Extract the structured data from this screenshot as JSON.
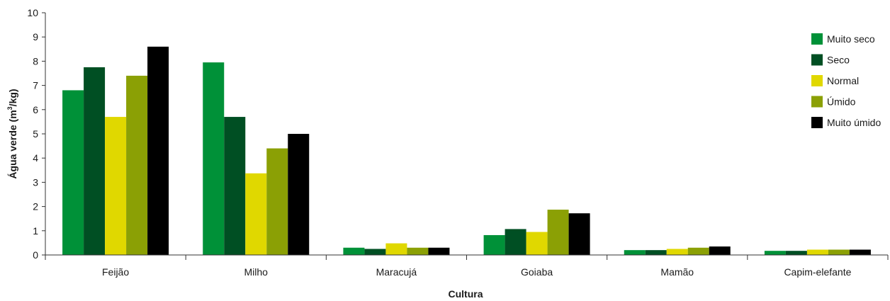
{
  "chart_data": {
    "type": "bar",
    "title": "",
    "xlabel": "Cultura",
    "ylabel_main": "Água verde (m",
    "ylabel_sup": "3",
    "ylabel_end": "/kg)",
    "ylim": [
      0,
      10
    ],
    "yticks": [
      "0",
      "1",
      "2",
      "3",
      "4",
      "5",
      "6",
      "7",
      "8",
      "9",
      "10"
    ],
    "grid": false,
    "legend_position": "right",
    "categories": [
      "Feijão",
      "Milho",
      "Maracujá",
      "Goiaba",
      "Mamão",
      "Capim-elefante"
    ],
    "series": [
      {
        "name": "Muito seco",
        "color": "#009138",
        "values": [
          6.8,
          7.95,
          0.3,
          0.82,
          0.2,
          0.17
        ]
      },
      {
        "name": "Seco",
        "color": "#004f23",
        "values": [
          7.75,
          5.7,
          0.25,
          1.07,
          0.2,
          0.17
        ]
      },
      {
        "name": "Normal",
        "color": "#e0d800",
        "values": [
          5.7,
          3.37,
          0.48,
          0.95,
          0.25,
          0.22
        ]
      },
      {
        "name": "Úmido",
        "color": "#8ba005",
        "values": [
          7.4,
          4.4,
          0.3,
          1.87,
          0.3,
          0.22
        ]
      },
      {
        "name": "Muito úmido",
        "color": "#000000",
        "values": [
          8.6,
          5.0,
          0.3,
          1.72,
          0.35,
          0.22
        ]
      }
    ]
  }
}
